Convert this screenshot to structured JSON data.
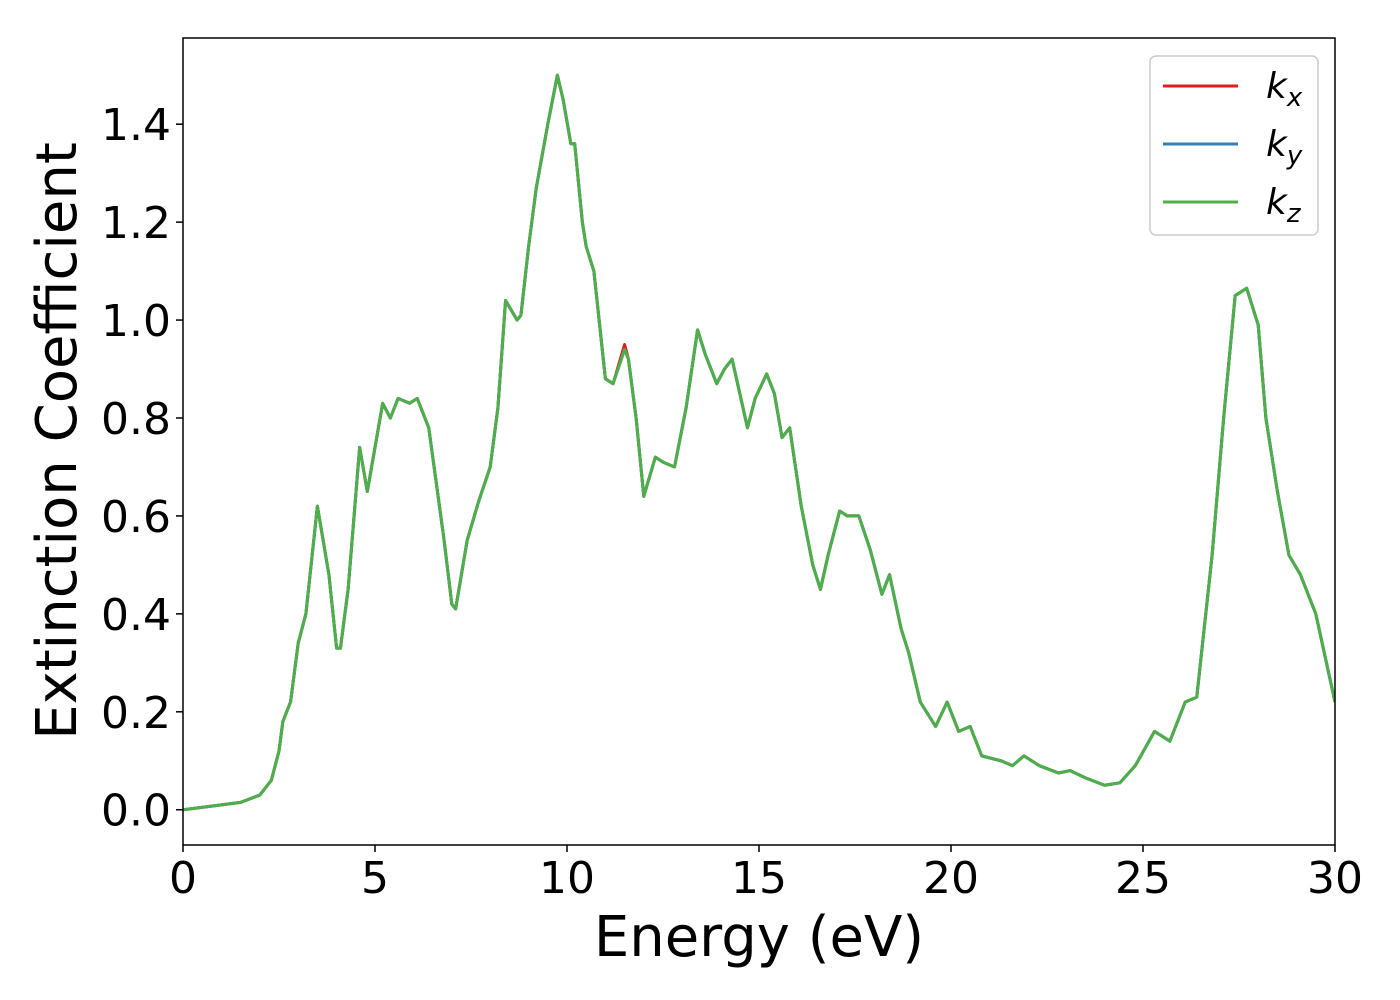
{
  "chart_data": {
    "type": "line",
    "xlabel": "Energy (eV)",
    "ylabel": "Extinction Coefficient",
    "xlim": [
      0,
      30
    ],
    "ylim": [
      -0.072,
      1.576
    ],
    "xticks": [
      0,
      5,
      10,
      15,
      20,
      25,
      30
    ],
    "yticks": [
      {
        "value": 0,
        "label": "0.0"
      },
      0.2,
      0.4,
      0.6,
      0.8,
      {
        "value": 1,
        "label": "1.0"
      },
      1.2,
      1.4
    ],
    "legend": "upper right",
    "x": [
      0,
      1,
      1.5,
      2,
      2.3,
      2.5,
      2.6,
      2.8,
      3.0,
      3.2,
      3.5,
      3.8,
      4.0,
      4.1,
      4.3,
      4.6,
      4.8,
      5.2,
      5.4,
      5.6,
      5.9,
      6.1,
      6.4,
      6.8,
      7.0,
      7.1,
      7.4,
      7.7,
      8.0,
      8.2,
      8.4,
      8.7,
      8.8,
      9.0,
      9.2,
      9.5,
      9.75,
      9.9,
      10.1,
      10.2,
      10.4,
      10.5,
      10.7,
      11.0,
      11.2,
      11.5,
      11.6,
      11.8,
      12.0,
      12.3,
      12.5,
      12.8,
      13.1,
      13.4,
      13.6,
      13.9,
      14.1,
      14.3,
      14.5,
      14.7,
      14.9,
      15.2,
      15.4,
      15.6,
      15.8,
      16.1,
      16.4,
      16.6,
      16.8,
      17.1,
      17.3,
      17.6,
      17.9,
      18.2,
      18.4,
      18.7,
      18.9,
      19.2,
      19.6,
      19.9,
      20.2,
      20.5,
      20.8,
      21.3,
      21.6,
      21.9,
      22.3,
      22.8,
      23.1,
      23.5,
      24.0,
      24.4,
      24.8,
      25.3,
      25.7,
      26.1,
      26.4,
      26.8,
      27.1,
      27.4,
      27.7,
      28.0,
      28.2,
      28.5,
      28.8,
      29.1,
      29.3,
      29.5,
      30.0
    ],
    "series": [
      {
        "name": "kx",
        "color": "#e41a1c",
        "values": [
          0,
          0.01,
          0.015,
          0.03,
          0.06,
          0.12,
          0.18,
          0.22,
          0.34,
          0.4,
          0.62,
          0.48,
          0.33,
          0.33,
          0.45,
          0.74,
          0.65,
          0.83,
          0.8,
          0.84,
          0.83,
          0.84,
          0.78,
          0.55,
          0.42,
          0.41,
          0.55,
          0.63,
          0.7,
          0.82,
          1.04,
          1.0,
          1.01,
          1.15,
          1.27,
          1.4,
          1.5,
          1.45,
          1.36,
          1.36,
          1.2,
          1.15,
          1.1,
          0.88,
          0.87,
          0.95,
          0.92,
          0.8,
          0.64,
          0.72,
          0.71,
          0.7,
          0.82,
          0.98,
          0.93,
          0.87,
          0.9,
          0.92,
          0.85,
          0.78,
          0.84,
          0.89,
          0.85,
          0.76,
          0.78,
          0.62,
          0.5,
          0.45,
          0.52,
          0.61,
          0.6,
          0.6,
          0.53,
          0.44,
          0.48,
          0.37,
          0.32,
          0.22,
          0.17,
          0.22,
          0.16,
          0.17,
          0.11,
          0.1,
          0.09,
          0.11,
          0.09,
          0.075,
          0.08,
          0.065,
          0.05,
          0.055,
          0.09,
          0.16,
          0.14,
          0.22,
          0.23,
          0.52,
          0.8,
          1.05,
          1.065,
          0.99,
          0.8,
          0.65,
          0.52,
          0.48,
          0.44,
          0.4,
          0.22
        ]
      },
      {
        "name": "ky",
        "color": "#377eb8",
        "values": [
          0,
          0.01,
          0.015,
          0.03,
          0.06,
          0.12,
          0.18,
          0.22,
          0.34,
          0.4,
          0.62,
          0.48,
          0.33,
          0.33,
          0.45,
          0.74,
          0.65,
          0.83,
          0.8,
          0.84,
          0.83,
          0.84,
          0.78,
          0.55,
          0.42,
          0.41,
          0.55,
          0.63,
          0.7,
          0.82,
          1.04,
          1.0,
          1.01,
          1.15,
          1.27,
          1.4,
          1.5,
          1.45,
          1.36,
          1.36,
          1.2,
          1.15,
          1.1,
          0.88,
          0.87,
          0.94,
          0.92,
          0.8,
          0.64,
          0.72,
          0.71,
          0.7,
          0.82,
          0.98,
          0.93,
          0.87,
          0.9,
          0.92,
          0.85,
          0.78,
          0.84,
          0.89,
          0.85,
          0.76,
          0.78,
          0.62,
          0.5,
          0.45,
          0.52,
          0.61,
          0.6,
          0.6,
          0.53,
          0.44,
          0.48,
          0.37,
          0.32,
          0.22,
          0.17,
          0.22,
          0.16,
          0.17,
          0.11,
          0.1,
          0.09,
          0.11,
          0.09,
          0.075,
          0.08,
          0.065,
          0.05,
          0.055,
          0.09,
          0.16,
          0.14,
          0.22,
          0.23,
          0.52,
          0.8,
          1.05,
          1.065,
          0.99,
          0.8,
          0.65,
          0.52,
          0.48,
          0.44,
          0.4,
          0.22
        ]
      },
      {
        "name": "kz",
        "color": "#4daf4a",
        "values": [
          0,
          0.01,
          0.015,
          0.03,
          0.06,
          0.12,
          0.18,
          0.22,
          0.34,
          0.4,
          0.62,
          0.48,
          0.33,
          0.33,
          0.45,
          0.74,
          0.65,
          0.83,
          0.8,
          0.84,
          0.83,
          0.84,
          0.78,
          0.55,
          0.42,
          0.41,
          0.55,
          0.63,
          0.7,
          0.82,
          1.04,
          1.0,
          1.01,
          1.15,
          1.27,
          1.4,
          1.5,
          1.45,
          1.36,
          1.36,
          1.2,
          1.15,
          1.1,
          0.88,
          0.87,
          0.94,
          0.92,
          0.8,
          0.64,
          0.72,
          0.71,
          0.7,
          0.82,
          0.98,
          0.93,
          0.87,
          0.9,
          0.92,
          0.85,
          0.78,
          0.84,
          0.89,
          0.85,
          0.76,
          0.78,
          0.62,
          0.5,
          0.45,
          0.52,
          0.61,
          0.6,
          0.6,
          0.53,
          0.44,
          0.48,
          0.37,
          0.32,
          0.22,
          0.17,
          0.22,
          0.16,
          0.17,
          0.11,
          0.1,
          0.09,
          0.11,
          0.09,
          0.075,
          0.08,
          0.065,
          0.05,
          0.055,
          0.09,
          0.16,
          0.14,
          0.22,
          0.23,
          0.52,
          0.8,
          1.05,
          1.065,
          0.99,
          0.8,
          0.65,
          0.52,
          0.48,
          0.44,
          0.4,
          0.22
        ]
      }
    ]
  }
}
